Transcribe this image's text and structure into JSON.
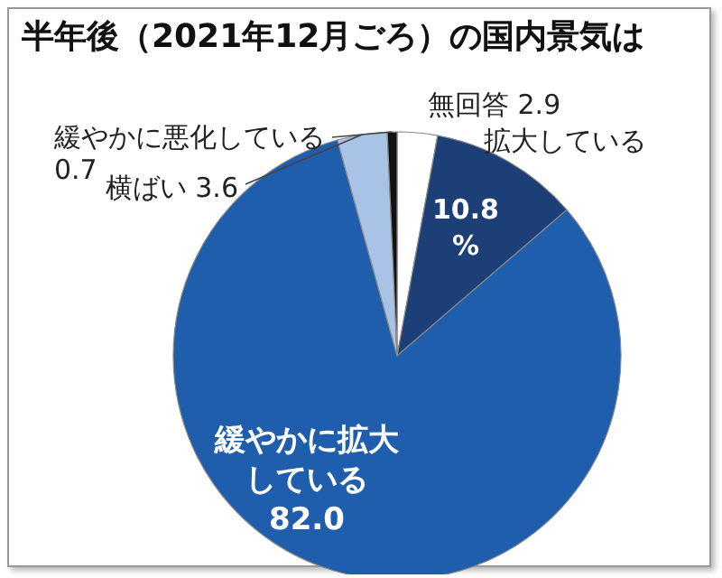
{
  "chart_data": {
    "type": "pie",
    "title": "半年後（2021年12月ごろ）の国内景気は",
    "categories": [
      "無回答",
      "拡大している",
      "緩やかに拡大している",
      "横ばい",
      "緩やかに悪化している"
    ],
    "values": [
      2.9,
      10.8,
      82.0,
      3.6,
      0.7
    ],
    "colors": [
      "#ffffff",
      "#1d3f78",
      "#1f5eac",
      "#a9c3e6",
      "#111111"
    ],
    "value_labels": [
      "2.9",
      "10.8%",
      "82.0",
      "3.6",
      "0.7"
    ]
  }
}
